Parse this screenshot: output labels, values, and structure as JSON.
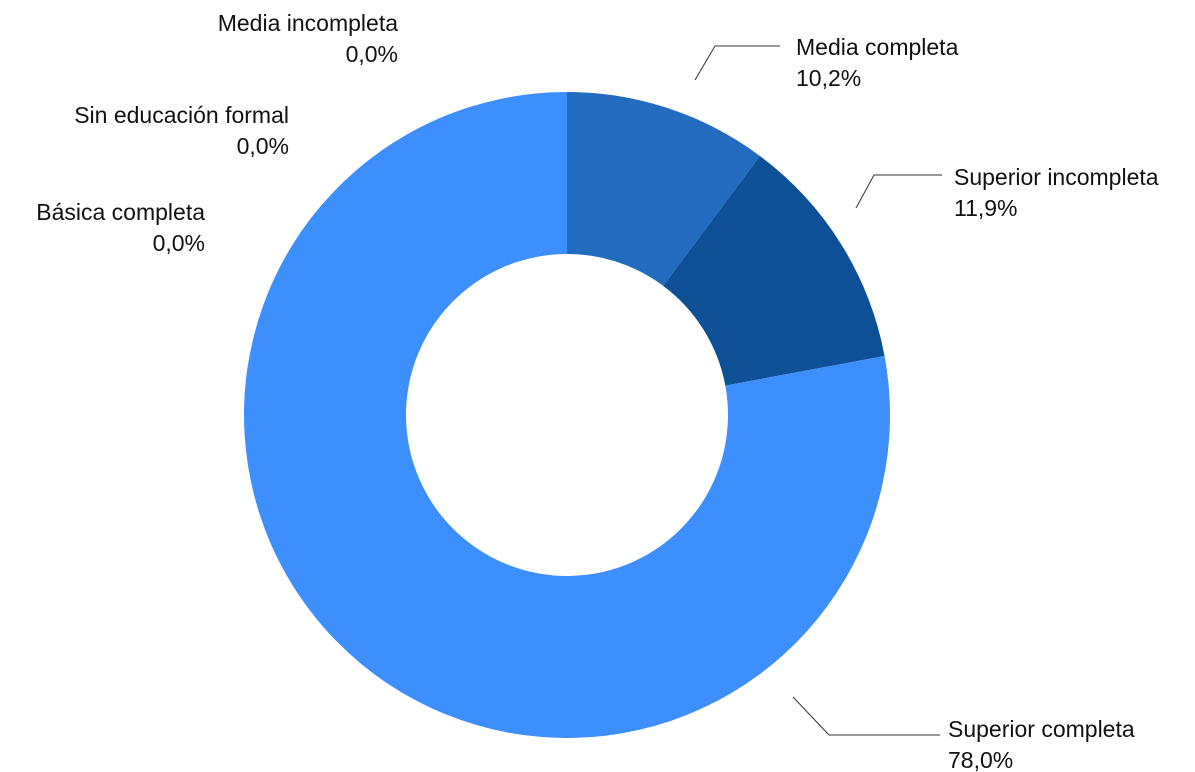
{
  "chart_data": {
    "type": "pie",
    "donut": true,
    "slices": [
      {
        "label": "Media completa",
        "value_text": "10,2%",
        "value": 10.2,
        "color": "#226cc0"
      },
      {
        "label": "Superior incompleta",
        "value_text": "11,9%",
        "value": 11.9,
        "color": "#0e5096"
      },
      {
        "label": "Superior completa",
        "value_text": "78,0%",
        "value": 78.0,
        "color": "#3e8ffe"
      },
      {
        "label": "Básica completa",
        "value_text": "0,0%",
        "value": 0.0,
        "color": "#3e8ffe"
      },
      {
        "label": "Sin educación formal",
        "value_text": "0,0%",
        "value": 0.0,
        "color": "#3e8ffe"
      },
      {
        "label": "Media incompleta",
        "value_text": "0,0%",
        "value": 0.0,
        "color": "#3e8ffe"
      }
    ]
  }
}
